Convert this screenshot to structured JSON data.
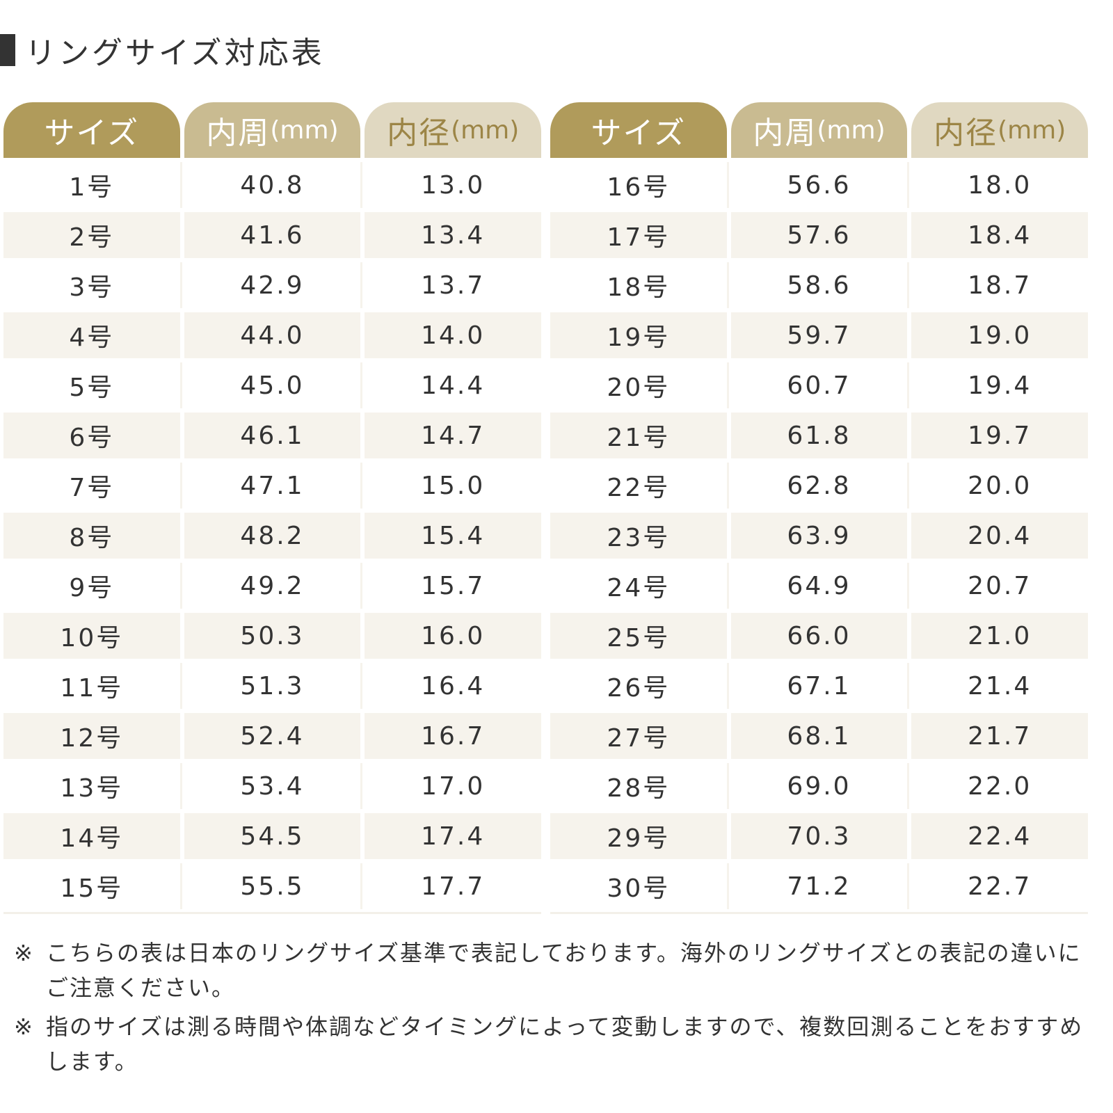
{
  "title": "リングサイズ対応表",
  "headers": [
    {
      "main": "サイズ",
      "unit": ""
    },
    {
      "main": "内周",
      "unit": "(mm)"
    },
    {
      "main": "内径",
      "unit": "(mm)"
    }
  ],
  "tables": [
    {
      "rows": [
        [
          "1号",
          "40.8",
          "13.0"
        ],
        [
          "2号",
          "41.6",
          "13.4"
        ],
        [
          "3号",
          "42.9",
          "13.7"
        ],
        [
          "4号",
          "44.0",
          "14.0"
        ],
        [
          "5号",
          "45.0",
          "14.4"
        ],
        [
          "6号",
          "46.1",
          "14.7"
        ],
        [
          "7号",
          "47.1",
          "15.0"
        ],
        [
          "8号",
          "48.2",
          "15.4"
        ],
        [
          "9号",
          "49.2",
          "15.7"
        ],
        [
          "10号",
          "50.3",
          "16.0"
        ],
        [
          "11号",
          "51.3",
          "16.4"
        ],
        [
          "12号",
          "52.4",
          "16.7"
        ],
        [
          "13号",
          "53.4",
          "17.0"
        ],
        [
          "14号",
          "54.5",
          "17.4"
        ],
        [
          "15号",
          "55.5",
          "17.7"
        ]
      ]
    },
    {
      "rows": [
        [
          "16号",
          "56.6",
          "18.0"
        ],
        [
          "17号",
          "57.6",
          "18.4"
        ],
        [
          "18号",
          "58.6",
          "18.7"
        ],
        [
          "19号",
          "59.7",
          "19.0"
        ],
        [
          "20号",
          "60.7",
          "19.4"
        ],
        [
          "21号",
          "61.8",
          "19.7"
        ],
        [
          "22号",
          "62.8",
          "20.0"
        ],
        [
          "23号",
          "63.9",
          "20.4"
        ],
        [
          "24号",
          "64.9",
          "20.7"
        ],
        [
          "25号",
          "66.0",
          "21.0"
        ],
        [
          "26号",
          "67.1",
          "21.4"
        ],
        [
          "27号",
          "68.1",
          "21.7"
        ],
        [
          "28号",
          "69.0",
          "22.0"
        ],
        [
          "29号",
          "70.3",
          "22.4"
        ],
        [
          "30号",
          "71.2",
          "22.7"
        ]
      ]
    }
  ],
  "notes": [
    {
      "mark": "※",
      "text": "こちらの表は日本のリングサイズ基準で表記しております。海外のリングサイズとの表記の違いにご注意ください。"
    },
    {
      "mark": "※",
      "text": "指のサイズは測る時間や体調などタイミングによって変動しますので、複数回測ることをおすすめします。"
    }
  ],
  "colors": {
    "header_size": "#b09b5b",
    "header_circumference": "#c9bb91",
    "header_diameter": "#e0d8c1",
    "row_alt": "#f6f3ec",
    "text": "#333333"
  }
}
